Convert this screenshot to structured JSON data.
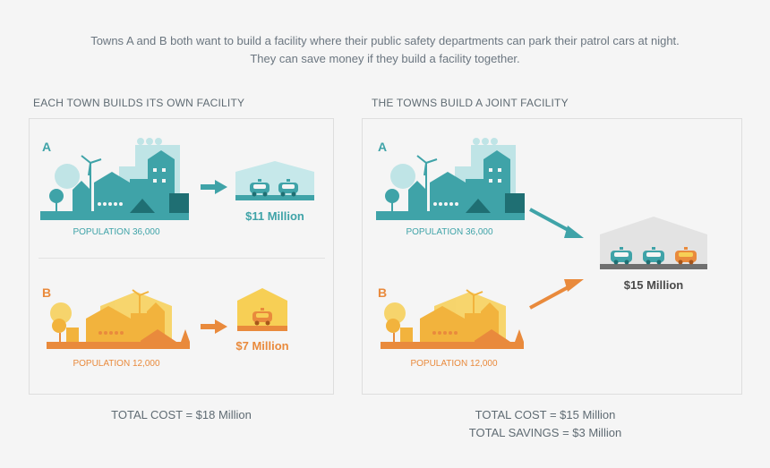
{
  "intro": {
    "line1": "Towns A and B both want to build a facility where their public safety departments can park their patrol cars at night.",
    "line2": "They can save money if they build a facility together."
  },
  "colors": {
    "town_a": "#3fa3a8",
    "town_a_light": "#a9dde0",
    "town_b": "#e98a3c",
    "town_b_light": "#f7cf55",
    "grey": "#6f6f6f",
    "text": "#5f6b73"
  },
  "left_panel": {
    "heading": "EACH TOWN BUILDS ITS OWN FACILITY",
    "town_a": {
      "letter": "A",
      "population": "POPULATION 36,000",
      "cost": "$11 Million"
    },
    "town_b": {
      "letter": "B",
      "population": "POPULATION 12,000",
      "cost": "$7 Million"
    },
    "total": "TOTAL COST = $18 Million"
  },
  "right_panel": {
    "heading": "THE TOWNS BUILD A JOINT FACILITY",
    "town_a": {
      "letter": "A",
      "population": "POPULATION 36,000"
    },
    "town_b": {
      "letter": "B",
      "population": "POPULATION 12,000"
    },
    "joint_cost": "$15 Million",
    "total_cost": "TOTAL COST = $15 Million",
    "total_savings": "TOTAL SAVINGS = $3 Million"
  },
  "icons": [
    "town-a-skyline-icon",
    "town-b-skyline-icon",
    "garage-icon",
    "patrol-car-icon",
    "arrow-icon"
  ]
}
